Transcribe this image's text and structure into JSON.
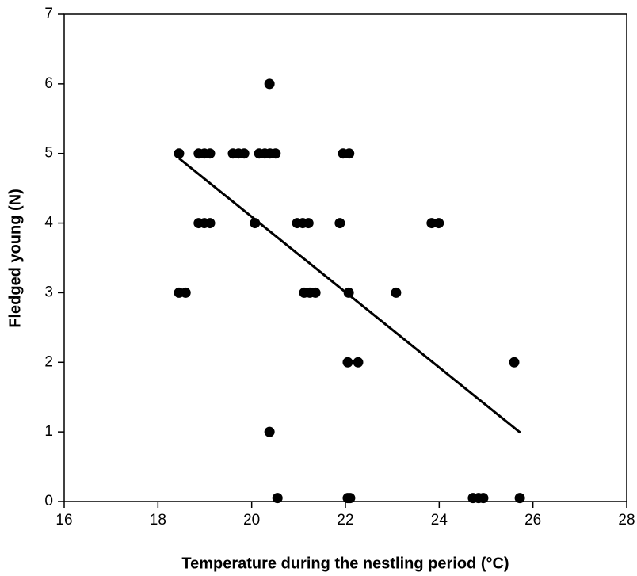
{
  "chart_data": {
    "type": "scatter",
    "xlabel": "Temperature during the nestling period  (°C)",
    "ylabel": "Fledged young   (N)",
    "x": [
      18.45,
      18.87,
      18.99,
      19.11,
      19.6,
      19.72,
      19.84,
      20.16,
      20.28,
      20.39,
      20.51,
      21.95,
      22.08,
      20.38,
      18.87,
      18.99,
      19.11,
      20.07,
      20.97,
      21.09,
      21.21,
      21.88,
      23.84,
      23.99,
      18.45,
      18.59,
      21.12,
      21.24,
      21.36,
      22.07,
      23.08,
      22.05,
      22.27,
      25.6,
      20.38,
      20.55,
      22.05,
      22.1,
      24.72,
      24.84,
      24.94,
      25.72
    ],
    "y": [
      5,
      5,
      5,
      5,
      5,
      5,
      5,
      5,
      5,
      5,
      5,
      5,
      5,
      6,
      4,
      4,
      4,
      4,
      4,
      4,
      4,
      4,
      4,
      4,
      3,
      3,
      3,
      3,
      3,
      3,
      3,
      2,
      2,
      2,
      1,
      0.05,
      0.05,
      0.05,
      0.05,
      0.05,
      0.05,
      0.05
    ],
    "color": "#000000",
    "trendline": {
      "x": [
        18.45,
        25.73
      ],
      "y": [
        4.93,
        0.99
      ]
    },
    "xlim": [
      16,
      28
    ],
    "xticks": [
      16,
      18,
      20,
      22,
      24,
      26,
      28
    ],
    "ylim": [
      0,
      7
    ],
    "yticks": [
      0,
      1,
      2,
      3,
      4,
      5,
      6,
      7
    ]
  }
}
